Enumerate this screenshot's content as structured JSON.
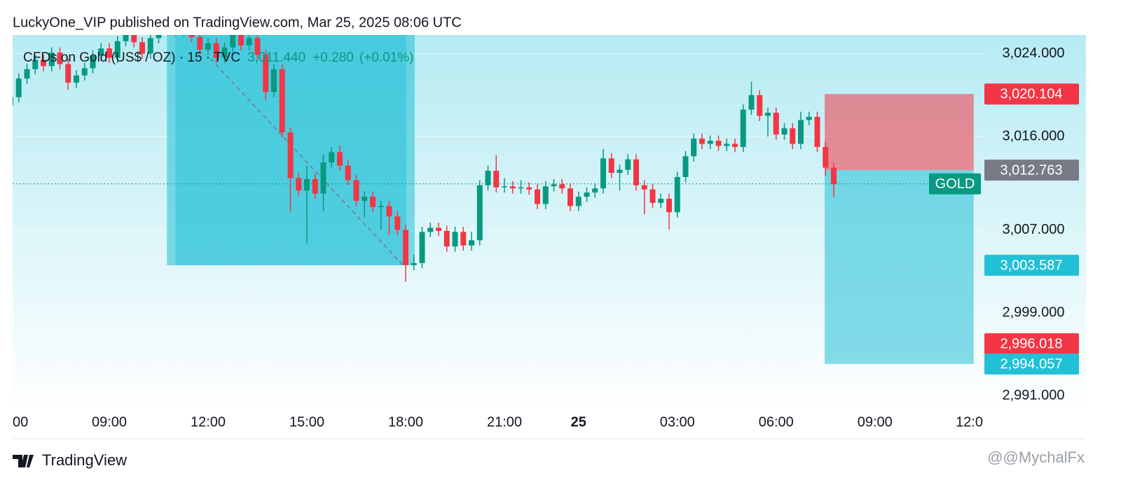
{
  "header": {
    "publisher": "LuckyOne_VIP published on TradingView.com, Mar 25, 2025 08:06 UTC",
    "symbol": "CFDs on Gold (US$ / OZ) · 15 · TVC",
    "price": "3,011.440",
    "change": "+0.280",
    "change_pct": "(+0.01%)"
  },
  "footer": {
    "brand": "TradingView",
    "watermark": "@@MychalFx"
  },
  "chart_data": {
    "type": "candlestick",
    "categories": [
      "00",
      null,
      null,
      null,
      null,
      null,
      null,
      null,
      null,
      null,
      null,
      null,
      "09:00",
      null,
      null,
      null,
      null,
      null,
      null,
      null,
      null,
      null,
      null,
      null,
      "12:00",
      null,
      null,
      null,
      null,
      null,
      null,
      null,
      null,
      null,
      null,
      null,
      "15:00",
      null,
      null,
      null,
      null,
      null,
      null,
      null,
      null,
      null,
      null,
      null,
      "18:00",
      null,
      null,
      null,
      null,
      null,
      null,
      null,
      null,
      null,
      null,
      null,
      "21:00",
      null,
      null,
      null,
      null,
      null,
      null,
      null,
      null,
      "25",
      null,
      null,
      null,
      null,
      null,
      null,
      null,
      null,
      null,
      null,
      null,
      "03:00",
      null,
      null,
      null,
      null,
      null,
      null,
      null,
      null,
      null,
      null,
      null,
      "06:00",
      null,
      null,
      null,
      null,
      null,
      null,
      null,
      null,
      null,
      null,
      null,
      "09:00",
      null,
      null,
      null,
      null,
      null,
      null,
      null,
      null,
      null,
      null,
      null,
      "12:0"
    ],
    "open": [
      3019.0,
      3019.8,
      3021.6,
      3022.5,
      3023.4,
      3022.8,
      3024.1,
      3023.0,
      3021.2,
      3021.9,
      3022.6,
      3023.8,
      3024.5,
      3023.6,
      3025.2,
      3026.4,
      3025.1,
      3024.0,
      3025.5,
      3026.8,
      3027.5,
      3026.2,
      3027.0,
      3025.6,
      3024.4,
      3025.0,
      3023.6,
      3024.6,
      3026.0,
      3024.8,
      3025.5,
      3023.9,
      3020.3,
      3022.5,
      3016.4,
      3012.0,
      3010.8,
      3011.9,
      3010.5,
      3013.5,
      3014.5,
      3013.2,
      3011.8,
      3009.8,
      3010.2,
      3009.2,
      3009.3,
      3008.3,
      3007.0,
      3003.6,
      3003.8,
      3006.8,
      3007.2,
      3006.9,
      3005.4,
      3006.8,
      3005.5,
      3006.0,
      3011.3,
      3012.7,
      3011.1,
      3011.2,
      3011.0,
      3011.1,
      3010.9,
      3009.5,
      3011.2,
      3011.4,
      3011.0,
      3009.3,
      3010.2,
      3010.6,
      3011.0,
      3013.9,
      3012.5,
      3012.8,
      3013.8,
      3011.3,
      3010.9,
      3009.6,
      3010.0,
      3008.7,
      3012.1,
      3014.1,
      3015.8,
      3015.3,
      3015.6,
      3015.1,
      3015.3,
      3015.0,
      3018.6,
      3020.0,
      3018.0,
      3018.3,
      3016.2,
      3016.8,
      3015.3,
      3017.6,
      3017.9,
      3015.0,
      3013.0,
      null,
      null,
      null,
      null,
      null,
      null,
      null,
      null,
      null,
      null,
      null,
      null,
      null,
      null,
      null,
      null,
      null
    ],
    "high": [
      3020.3,
      3022.1,
      3023.0,
      3023.9,
      3023.9,
      3024.6,
      3024.6,
      3023.5,
      3022.4,
      3023.1,
      3024.3,
      3025.0,
      3025.0,
      3025.7,
      3026.9,
      3026.9,
      3025.6,
      3026.0,
      3027.3,
      3028.0,
      3028.0,
      3027.5,
      3027.5,
      3026.1,
      3025.5,
      3025.5,
      3025.1,
      3026.5,
      3026.5,
      3026.0,
      3026.0,
      3024.4,
      3023.0,
      3023.0,
      3016.9,
      3012.5,
      3013.2,
      3012.4,
      3014.3,
      3015.0,
      3015.1,
      3013.7,
      3012.3,
      3010.7,
      3010.7,
      3009.8,
      3009.8,
      3008.8,
      3007.5,
      3004.6,
      3007.3,
      3007.7,
      3007.7,
      3007.4,
      3007.3,
      3007.3,
      3006.8,
      3011.8,
      3013.2,
      3014.2,
      3012.0,
      3011.7,
      3011.8,
      3011.6,
      3011.4,
      3011.7,
      3011.9,
      3011.9,
      3011.5,
      3010.7,
      3011.1,
      3011.5,
      3014.8,
      3014.4,
      3013.3,
      3014.3,
      3014.3,
      3011.8,
      3011.4,
      3010.5,
      3010.5,
      3012.6,
      3014.6,
      3016.3,
      3016.3,
      3016.1,
      3016.1,
      3015.8,
      3015.8,
      3019.1,
      3021.3,
      3020.5,
      3018.8,
      3018.8,
      3017.3,
      3017.3,
      3018.4,
      3018.4,
      3018.4,
      3015.5,
      3013.5,
      null,
      null,
      null,
      null,
      null,
      null,
      null,
      null,
      null,
      null,
      null,
      null,
      null,
      null,
      null,
      null,
      null
    ],
    "low": [
      3017.0,
      3019.3,
      3021.1,
      3022.0,
      3022.3,
      3022.3,
      3022.5,
      3020.5,
      3020.7,
      3021.4,
      3022.1,
      3023.3,
      3023.1,
      3023.1,
      3024.7,
      3024.6,
      3023.5,
      3023.5,
      3025.0,
      3026.3,
      3025.7,
      3025.7,
      3025.1,
      3023.9,
      3023.9,
      3023.1,
      3023.1,
      3024.1,
      3024.3,
      3024.3,
      3023.4,
      3019.5,
      3019.8,
      3015.9,
      3008.8,
      3010.3,
      3005.7,
      3010.0,
      3008.8,
      3013.0,
      3012.7,
      3011.3,
      3009.3,
      3008.2,
      3008.7,
      3007.0,
      3006.5,
      3006.5,
      3002.0,
      3003.1,
      3003.3,
      3006.3,
      3006.4,
      3004.9,
      3004.9,
      3005.0,
      3005.0,
      3005.5,
      3010.8,
      3010.6,
      3010.6,
      3010.5,
      3010.5,
      3010.4,
      3009.0,
      3009.0,
      3010.7,
      3010.5,
      3008.8,
      3008.8,
      3009.7,
      3010.1,
      3010.5,
      3012.0,
      3010.8,
      3012.3,
      3010.8,
      3008.5,
      3009.1,
      3009.1,
      3007.0,
      3008.2,
      3011.6,
      3013.6,
      3014.8,
      3014.8,
      3014.6,
      3014.6,
      3014.5,
      3014.5,
      3018.1,
      3017.5,
      3016.0,
      3015.7,
      3015.7,
      3014.8,
      3014.8,
      3017.1,
      3014.5,
      3012.2,
      3010.2,
      null,
      null,
      null,
      null,
      null,
      null,
      null,
      null,
      null,
      null,
      null,
      null,
      null,
      null,
      null,
      null,
      null
    ],
    "close": [
      3019.8,
      3021.6,
      3022.5,
      3023.4,
      3022.8,
      3024.1,
      3023.0,
      3021.2,
      3021.9,
      3022.6,
      3023.8,
      3024.5,
      3023.6,
      3025.2,
      3026.4,
      3025.1,
      3024.0,
      3025.5,
      3026.8,
      3027.5,
      3026.2,
      3027.0,
      3025.6,
      3024.4,
      3025.0,
      3023.6,
      3024.6,
      3026.0,
      3024.8,
      3025.5,
      3023.9,
      3020.3,
      3022.5,
      3016.4,
      3012.0,
      3010.8,
      3011.9,
      3010.5,
      3013.5,
      3014.5,
      3013.2,
      3011.8,
      3009.8,
      3010.2,
      3009.2,
      3009.3,
      3008.3,
      3007.0,
      3003.6,
      3003.8,
      3006.8,
      3007.2,
      3006.9,
      3005.4,
      3006.8,
      3005.5,
      3006.0,
      3011.3,
      3012.7,
      3011.1,
      3011.2,
      3011.0,
      3011.1,
      3010.9,
      3009.5,
      3011.2,
      3011.4,
      3011.0,
      3009.3,
      3010.2,
      3010.6,
      3011.0,
      3013.9,
      3012.5,
      3012.8,
      3013.8,
      3011.3,
      3010.9,
      3009.6,
      3010.0,
      3008.7,
      3012.1,
      3014.1,
      3015.8,
      3015.3,
      3015.6,
      3015.1,
      3015.3,
      3015.0,
      3018.6,
      3020.0,
      3018.0,
      3018.3,
      3016.2,
      3016.8,
      3015.3,
      3017.6,
      3017.9,
      3015.0,
      3013.0,
      3011.4,
      null,
      null,
      null,
      null,
      null,
      null,
      null,
      null,
      null,
      null,
      null,
      null,
      null,
      null,
      null,
      null,
      null
    ],
    "up_color": "#089981",
    "down_color": "#f23645",
    "ylim": [
      2990.7,
      3025.8
    ],
    "yticks": [
      {
        "value": 2991,
        "label": "2,991.000"
      },
      {
        "value": 2999,
        "label": "2,999.000"
      },
      {
        "value": 3007,
        "label": "3,007.000"
      },
      {
        "value": 3016,
        "label": "3,016.000"
      },
      {
        "value": 3024,
        "label": "3,024.000"
      }
    ],
    "grid": true,
    "last_price": {
      "value": 3011.44,
      "label": "GOLD",
      "color": "#089981"
    },
    "price_labels": [
      {
        "value": 3020.104,
        "label": "3,020.104",
        "color": "#f23645"
      },
      {
        "value": 3012.763,
        "label": "3,012.763",
        "color": "#787b86"
      },
      {
        "value": 3003.587,
        "label": "3,003.587",
        "color": "#22c0d6"
      },
      {
        "value": 2996.018,
        "label": "2,996.018",
        "color": "#f23645"
      },
      {
        "value": 2994.057,
        "label": "2,994.057",
        "color": "#22c0d6"
      }
    ],
    "range_box": {
      "start": 19,
      "end": 49.1,
      "top": 3027.5,
      "bottom": 3003.587,
      "color": "#22c0d6"
    },
    "trend_line": {
      "x": [
        24.3,
        47.9
      ],
      "y": [
        3023.5,
        3003.4
      ]
    },
    "position": {
      "start": 98.9,
      "end": 117,
      "entry": 3012.763,
      "stop": 3020.104,
      "target": 2994.057,
      "stop_color": "#f23645",
      "target_color": "#22c0d6"
    }
  }
}
